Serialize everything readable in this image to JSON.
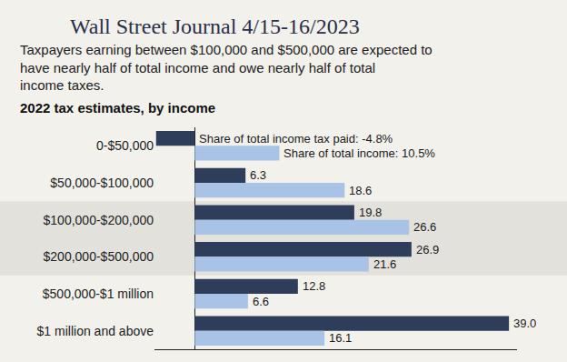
{
  "chart_data": {
    "type": "bar",
    "orientation": "horizontal",
    "annotations": [
      "Wall Street Journal 4/15-16/2023"
    ],
    "subtitle": "Taxpayers earning between $100,000 and $500,000 are expected to have nearly half of total income and owe nearly half of total income taxes.",
    "title": "2022 tax estimates, by income",
    "categories": [
      "0-$50,000",
      "$50,000-$100,000",
      "$100,000-$200,000",
      "$200,000-$500,000",
      "$500,000-$1 million",
      "$1 million and above"
    ],
    "series": [
      {
        "name": "Share of total income tax paid",
        "color": "#2d3d5a",
        "values": [
          -4.8,
          6.3,
          19.8,
          26.9,
          12.8,
          39.0
        ],
        "value_labels": [
          "Share of total income tax paid: -4.8%",
          "6.3",
          "19.8",
          "26.9",
          "12.8",
          "39.0"
        ]
      },
      {
        "name": "Share of total income",
        "color": "#a8c3e6",
        "values": [
          10.5,
          18.6,
          26.6,
          21.6,
          6.6,
          16.1
        ],
        "value_labels": [
          "Share of total income: 10.5%",
          "18.6",
          "26.6",
          "21.6",
          "6.6",
          "16.1"
        ]
      }
    ],
    "xlim": [
      -5,
      40
    ],
    "xticks": [],
    "grid": false,
    "data_labels": true,
    "tick_labels": "y"
  }
}
